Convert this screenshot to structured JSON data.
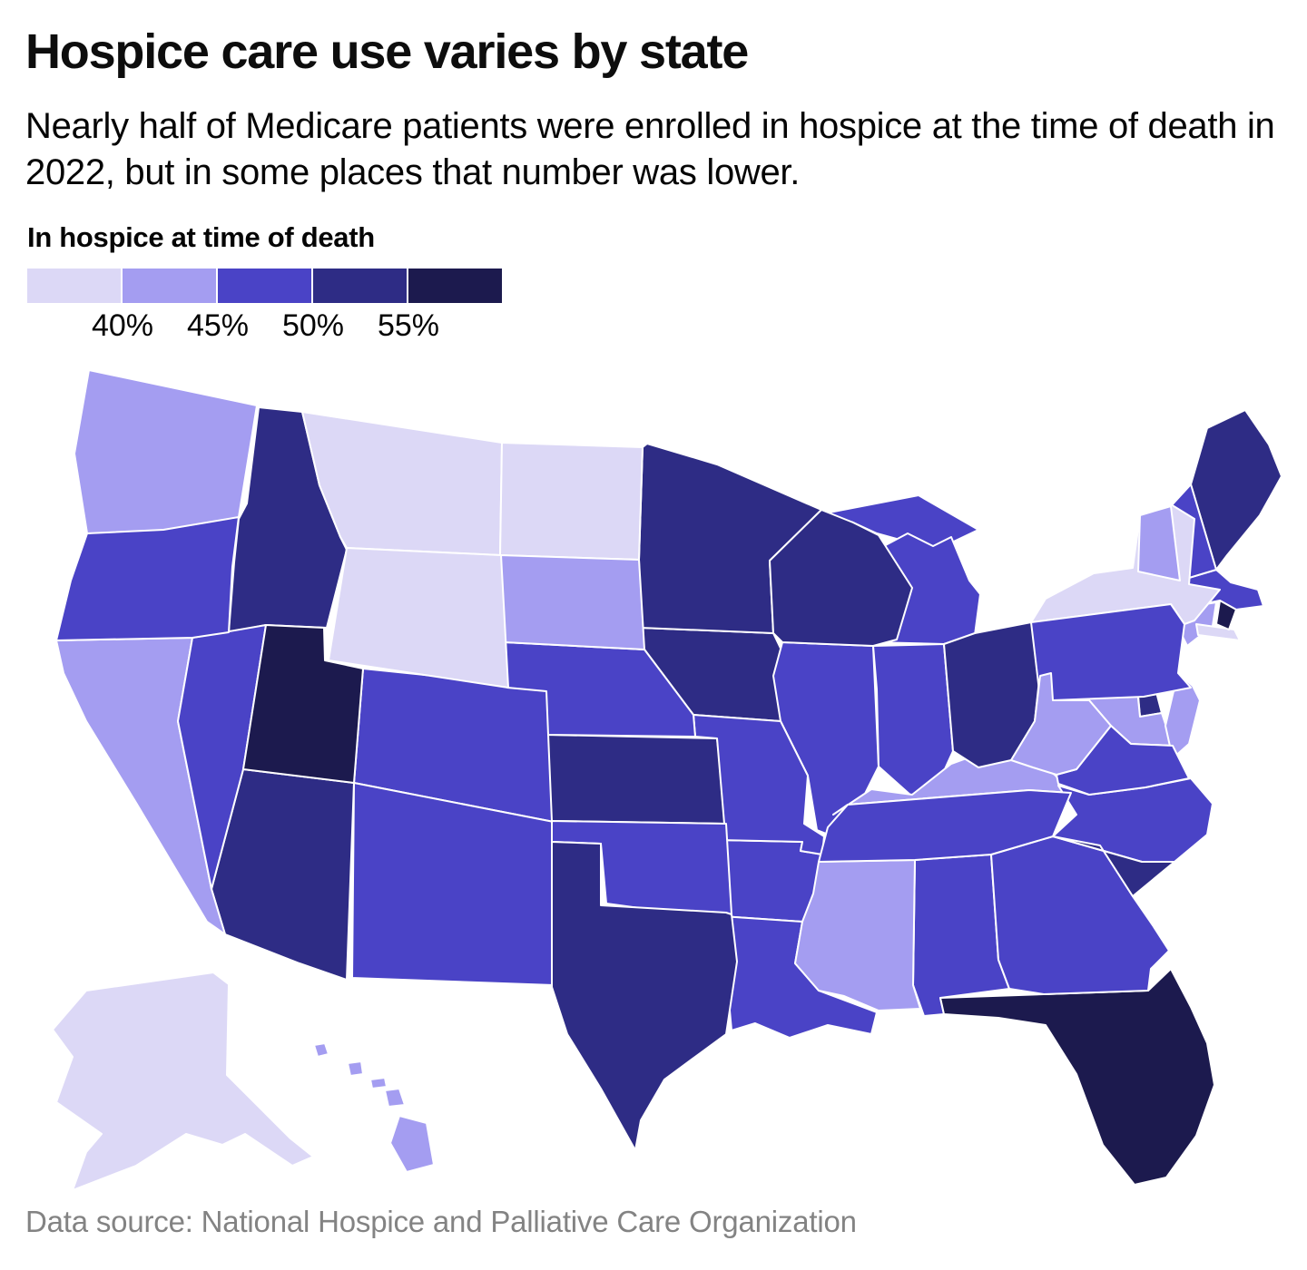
{
  "header": {
    "title": "Hospice care use varies by state",
    "subtitle": "Nearly half of Medicare patients were enrolled in hospice at the time of death in 2022, but in some places that number was lower."
  },
  "legend": {
    "title": "In hospice at time of death",
    "tick_labels": [
      "40%",
      "45%",
      "50%",
      "55%"
    ]
  },
  "footer": {
    "source": "Data source: National Hospice and Palliative Care Organization"
  },
  "chart_data": {
    "type": "choropleth_map",
    "title": "Hospice care use varies by state",
    "metric": "Share of Medicare patients enrolled in hospice at time of death, 2022",
    "unit": "percent",
    "legend_position": "top-left",
    "bins": [
      {
        "label": "Under 40%",
        "color": "#dcd8f6"
      },
      {
        "label": "40-45%",
        "color": "#a49df1"
      },
      {
        "label": "45-50%",
        "color": "#4a43c6"
      },
      {
        "label": "50-55%",
        "color": "#2e2c85"
      },
      {
        "label": "55% and over",
        "color": "#1c1a4e"
      }
    ],
    "states": [
      {
        "code": "AK",
        "name": "Alaska",
        "bin": 0,
        "value_estimate": 37
      },
      {
        "code": "AL",
        "name": "Alabama",
        "bin": 2,
        "value_estimate": 47
      },
      {
        "code": "AR",
        "name": "Arkansas",
        "bin": 2,
        "value_estimate": 47
      },
      {
        "code": "AZ",
        "name": "Arizona",
        "bin": 3,
        "value_estimate": 52
      },
      {
        "code": "CA",
        "name": "California",
        "bin": 1,
        "value_estimate": 43
      },
      {
        "code": "CO",
        "name": "Colorado",
        "bin": 2,
        "value_estimate": 47
      },
      {
        "code": "CT",
        "name": "Connecticut",
        "bin": 1,
        "value_estimate": 43
      },
      {
        "code": "DE",
        "name": "Delaware",
        "bin": 3,
        "value_estimate": 52
      },
      {
        "code": "FL",
        "name": "Florida",
        "bin": 4,
        "value_estimate": 57
      },
      {
        "code": "GA",
        "name": "Georgia",
        "bin": 2,
        "value_estimate": 47
      },
      {
        "code": "HI",
        "name": "Hawaii",
        "bin": 1,
        "value_estimate": 43
      },
      {
        "code": "IA",
        "name": "Iowa",
        "bin": 3,
        "value_estimate": 52
      },
      {
        "code": "ID",
        "name": "Idaho",
        "bin": 3,
        "value_estimate": 52
      },
      {
        "code": "IL",
        "name": "Illinois",
        "bin": 2,
        "value_estimate": 47
      },
      {
        "code": "IN",
        "name": "Indiana",
        "bin": 2,
        "value_estimate": 47
      },
      {
        "code": "KS",
        "name": "Kansas",
        "bin": 3,
        "value_estimate": 52
      },
      {
        "code": "KY",
        "name": "Kentucky",
        "bin": 1,
        "value_estimate": 43
      },
      {
        "code": "LA",
        "name": "Louisiana",
        "bin": 2,
        "value_estimate": 47
      },
      {
        "code": "MA",
        "name": "Massachusetts",
        "bin": 2,
        "value_estimate": 47
      },
      {
        "code": "MD",
        "name": "Maryland",
        "bin": 1,
        "value_estimate": 43
      },
      {
        "code": "ME",
        "name": "Maine",
        "bin": 3,
        "value_estimate": 52
      },
      {
        "code": "MI",
        "name": "Michigan",
        "bin": 2,
        "value_estimate": 47
      },
      {
        "code": "MN",
        "name": "Minnesota",
        "bin": 3,
        "value_estimate": 52
      },
      {
        "code": "MO",
        "name": "Missouri",
        "bin": 2,
        "value_estimate": 47
      },
      {
        "code": "MS",
        "name": "Mississippi",
        "bin": 1,
        "value_estimate": 43
      },
      {
        "code": "MT",
        "name": "Montana",
        "bin": 0,
        "value_estimate": 38
      },
      {
        "code": "NC",
        "name": "North Carolina",
        "bin": 2,
        "value_estimate": 47
      },
      {
        "code": "ND",
        "name": "North Dakota",
        "bin": 0,
        "value_estimate": 38
      },
      {
        "code": "NE",
        "name": "Nebraska",
        "bin": 2,
        "value_estimate": 47
      },
      {
        "code": "NH",
        "name": "New Hampshire",
        "bin": 2,
        "value_estimate": 47
      },
      {
        "code": "NJ",
        "name": "New Jersey",
        "bin": 1,
        "value_estimate": 43
      },
      {
        "code": "NM",
        "name": "New Mexico",
        "bin": 2,
        "value_estimate": 47
      },
      {
        "code": "NV",
        "name": "Nevada",
        "bin": 2,
        "value_estimate": 47
      },
      {
        "code": "NY",
        "name": "New York",
        "bin": 0,
        "value_estimate": 38
      },
      {
        "code": "OH",
        "name": "Ohio",
        "bin": 3,
        "value_estimate": 52
      },
      {
        "code": "OK",
        "name": "Oklahoma",
        "bin": 2,
        "value_estimate": 47
      },
      {
        "code": "OR",
        "name": "Oregon",
        "bin": 2,
        "value_estimate": 47
      },
      {
        "code": "PA",
        "name": "Pennsylvania",
        "bin": 2,
        "value_estimate": 47
      },
      {
        "code": "RI",
        "name": "Rhode Island",
        "bin": 4,
        "value_estimate": 57
      },
      {
        "code": "SC",
        "name": "South Carolina",
        "bin": 3,
        "value_estimate": 52
      },
      {
        "code": "SD",
        "name": "South Dakota",
        "bin": 1,
        "value_estimate": 43
      },
      {
        "code": "TN",
        "name": "Tennessee",
        "bin": 2,
        "value_estimate": 47
      },
      {
        "code": "TX",
        "name": "Texas",
        "bin": 3,
        "value_estimate": 52
      },
      {
        "code": "UT",
        "name": "Utah",
        "bin": 4,
        "value_estimate": 58
      },
      {
        "code": "VA",
        "name": "Virginia",
        "bin": 2,
        "value_estimate": 47
      },
      {
        "code": "VT",
        "name": "Vermont",
        "bin": 1,
        "value_estimate": 43
      },
      {
        "code": "WA",
        "name": "Washington",
        "bin": 1,
        "value_estimate": 43
      },
      {
        "code": "WI",
        "name": "Wisconsin",
        "bin": 3,
        "value_estimate": 52
      },
      {
        "code": "WV",
        "name": "West Virginia",
        "bin": 1,
        "value_estimate": 43
      },
      {
        "code": "WY",
        "name": "Wyoming",
        "bin": 0,
        "value_estimate": 38
      }
    ]
  }
}
